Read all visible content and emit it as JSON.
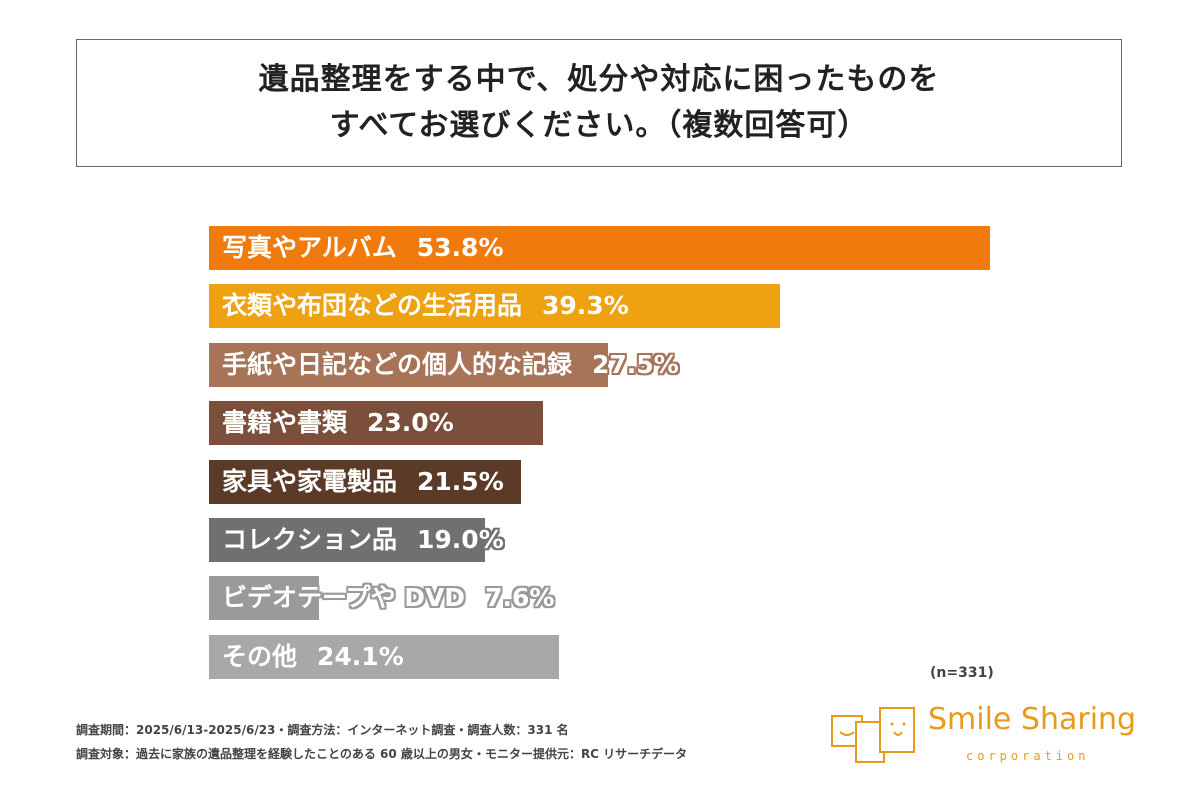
{
  "title": {
    "line1": "遺品整理をする中で、処分や対応に困ったものを",
    "line2": "すべてお選びください。（複数回答可）"
  },
  "chart_data": {
    "type": "bar",
    "orientation": "horizontal",
    "title": "遺品整理をする中で、処分や対応に困ったものをすべてお選びください。（複数回答可）",
    "categories": [
      "写真やアルバム",
      "衣類や布団などの生活用品",
      "手紙や日記などの個人的な記録",
      "書籍や書類",
      "家具や家電製品",
      "コレクション品",
      "ビデオテープや DVD",
      "その他"
    ],
    "values": [
      53.8,
      39.3,
      27.5,
      23.0,
      21.5,
      19.0,
      7.6,
      24.1
    ],
    "value_labels": [
      "53.8%",
      "39.3%",
      "27.5%",
      "23.0%",
      "21.5%",
      "19.0%",
      "7.6%",
      "24.1%"
    ],
    "colors": [
      "#F07A0C",
      "#EEA212",
      "#A87458",
      "#7B4F3B",
      "#5B3B28",
      "#707070",
      "#9A9A9A",
      "#A8A8A8"
    ],
    "unit": "%",
    "xlim": [
      0,
      53.8
    ]
  },
  "sample": "(n=331)",
  "footer": {
    "line1": "調査期間：2025/6/13-2025/6/23・調査方法：インターネット調査・調査人数：331 名",
    "line2": "調査対象：過去に家族の遺品整理を経験したことのある 60 歳以上の男女・モニター提供元：RC リサーチデータ"
  },
  "logo": {
    "name": "Smile Sharing",
    "sub": "corporation"
  }
}
